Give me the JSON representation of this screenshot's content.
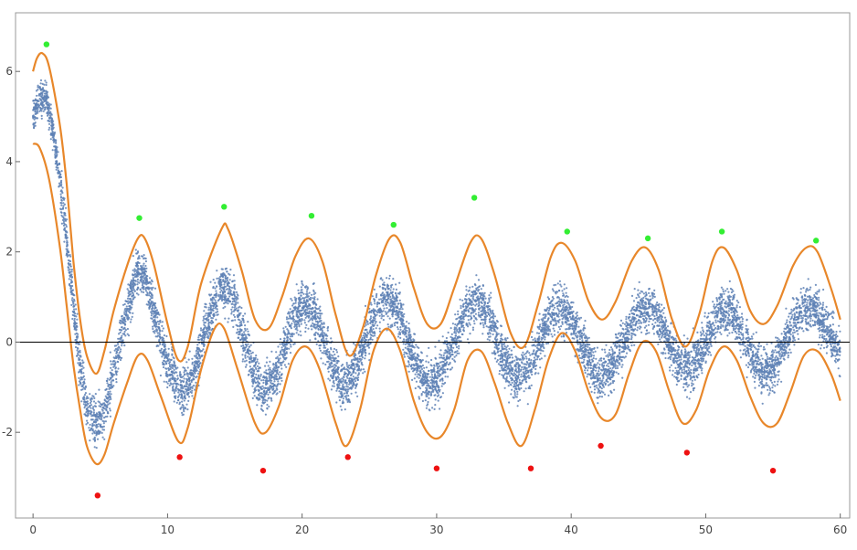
{
  "chart_data": {
    "type": "scatter",
    "title": "",
    "xlabel": "",
    "ylabel": "",
    "xlim": [
      -1.3,
      60.7
    ],
    "ylim": [
      -3.9,
      7.3
    ],
    "x_ticks": [
      0,
      10,
      20,
      30,
      40,
      50,
      60
    ],
    "y_ticks": [
      -2,
      0,
      2,
      4,
      6
    ],
    "x_tick_labels": [
      "0",
      "10",
      "20",
      "30",
      "40",
      "50",
      "60"
    ],
    "y_tick_labels": [
      "-2",
      "0",
      "2",
      "4",
      "6"
    ],
    "zero_line": true,
    "grid": false,
    "colors": {
      "scatter": "#5e81b5",
      "envelope": "#e8872a",
      "max_points": "#33ee33",
      "min_points": "#ee1111",
      "frame": "#999999"
    },
    "series": [
      {
        "role": "scatter-cloud",
        "approx_point_count": 9000,
        "x_range": [
          0,
          60
        ],
        "mean_curve": [
          [
            0,
            5.0
          ],
          [
            0.5,
            5.5
          ],
          [
            1,
            5.4
          ],
          [
            1.5,
            4.6
          ],
          [
            2,
            3.6
          ],
          [
            2.5,
            2.3
          ],
          [
            3,
            0.8
          ],
          [
            3.5,
            -0.6
          ],
          [
            4,
            -1.4
          ],
          [
            4.7,
            -1.8
          ],
          [
            5.3,
            -1.6
          ],
          [
            6,
            -0.6
          ],
          [
            7,
            0.7
          ],
          [
            7.8,
            1.6
          ],
          [
            8.3,
            1.5
          ],
          [
            9,
            0.6
          ],
          [
            10,
            -0.5
          ],
          [
            11,
            -1.1
          ],
          [
            12,
            -0.7
          ],
          [
            13,
            0.5
          ],
          [
            14,
            1.3
          ],
          [
            15,
            0.9
          ],
          [
            16,
            -0.3
          ],
          [
            17,
            -1.1
          ],
          [
            18,
            -0.8
          ],
          [
            19,
            0.2
          ],
          [
            20,
            0.9
          ],
          [
            21,
            0.6
          ],
          [
            22,
            -0.3
          ],
          [
            23,
            -1.0
          ],
          [
            24,
            -0.6
          ],
          [
            25,
            0.3
          ],
          [
            26,
            1.0
          ],
          [
            27,
            0.8
          ],
          [
            28,
            -0.1
          ],
          [
            29,
            -0.9
          ],
          [
            30,
            -0.9
          ],
          [
            31,
            -0.2
          ],
          [
            32,
            0.6
          ],
          [
            33,
            1.0
          ],
          [
            34,
            0.5
          ],
          [
            35,
            -0.4
          ],
          [
            36,
            -0.8
          ],
          [
            37,
            -0.5
          ],
          [
            38,
            0.3
          ],
          [
            39,
            0.8
          ],
          [
            40,
            0.6
          ],
          [
            41,
            -0.2
          ],
          [
            42,
            -0.8
          ],
          [
            43,
            -0.6
          ],
          [
            44,
            0.1
          ],
          [
            45,
            0.7
          ],
          [
            46,
            0.8
          ],
          [
            47,
            0.2
          ],
          [
            48,
            -0.5
          ],
          [
            49,
            -0.6
          ],
          [
            50,
            0.0
          ],
          [
            51,
            0.7
          ],
          [
            52,
            0.7
          ],
          [
            53,
            0.0
          ],
          [
            54,
            -0.6
          ],
          [
            55,
            -0.6
          ],
          [
            56,
            0.1
          ],
          [
            57,
            0.7
          ],
          [
            58,
            0.8
          ],
          [
            59,
            0.3
          ],
          [
            60,
            -0.2
          ]
        ]
      },
      {
        "role": "upper-envelope",
        "points": [
          [
            0,
            6.0
          ],
          [
            0.3,
            6.3
          ],
          [
            0.7,
            6.4
          ],
          [
            1.2,
            6.1
          ],
          [
            2,
            4.8
          ],
          [
            2.5,
            3.5
          ],
          [
            3,
            1.8
          ],
          [
            3.5,
            0.5
          ],
          [
            4,
            -0.3
          ],
          [
            4.7,
            -0.7
          ],
          [
            5.3,
            -0.2
          ],
          [
            6,
            0.7
          ],
          [
            7,
            1.7
          ],
          [
            7.8,
            2.3
          ],
          [
            8.3,
            2.3
          ],
          [
            9,
            1.7
          ],
          [
            10,
            0.4
          ],
          [
            10.8,
            -0.4
          ],
          [
            11.5,
            -0.1
          ],
          [
            12.5,
            1.3
          ],
          [
            14,
            2.5
          ],
          [
            14.5,
            2.5
          ],
          [
            15.5,
            1.6
          ],
          [
            16.5,
            0.5
          ],
          [
            17.5,
            0.3
          ],
          [
            18.5,
            1.0
          ],
          [
            19.5,
            1.9
          ],
          [
            20.5,
            2.3
          ],
          [
            21.5,
            1.8
          ],
          [
            22.5,
            0.6
          ],
          [
            23.5,
            -0.3
          ],
          [
            24.5,
            0.3
          ],
          [
            25.5,
            1.5
          ],
          [
            26.5,
            2.3
          ],
          [
            27.3,
            2.2
          ],
          [
            28.3,
            1.2
          ],
          [
            29.3,
            0.4
          ],
          [
            30.3,
            0.4
          ],
          [
            31.3,
            1.2
          ],
          [
            32.5,
            2.2
          ],
          [
            33.3,
            2.3
          ],
          [
            34.3,
            1.5
          ],
          [
            35.5,
            0.2
          ],
          [
            36.5,
            -0.1
          ],
          [
            37.5,
            0.8
          ],
          [
            38.5,
            1.9
          ],
          [
            39.3,
            2.2
          ],
          [
            40.3,
            1.8
          ],
          [
            41.3,
            0.9
          ],
          [
            42.3,
            0.5
          ],
          [
            43.3,
            0.9
          ],
          [
            44.5,
            1.8
          ],
          [
            45.5,
            2.1
          ],
          [
            46.5,
            1.6
          ],
          [
            47.5,
            0.5
          ],
          [
            48.5,
            -0.1
          ],
          [
            49.5,
            0.6
          ],
          [
            50.5,
            1.8
          ],
          [
            51.3,
            2.1
          ],
          [
            52.3,
            1.6
          ],
          [
            53.3,
            0.7
          ],
          [
            54.3,
            0.4
          ],
          [
            55.3,
            0.8
          ],
          [
            56.5,
            1.7
          ],
          [
            57.5,
            2.1
          ],
          [
            58.3,
            2.0
          ],
          [
            59.3,
            1.2
          ],
          [
            60,
            0.5
          ]
        ]
      },
      {
        "role": "lower-envelope",
        "points": [
          [
            0,
            4.4
          ],
          [
            0.5,
            4.3
          ],
          [
            1.2,
            3.6
          ],
          [
            2,
            2.1
          ],
          [
            2.5,
            0.8
          ],
          [
            3,
            -0.5
          ],
          [
            3.5,
            -1.5
          ],
          [
            4,
            -2.3
          ],
          [
            4.7,
            -2.7
          ],
          [
            5.3,
            -2.5
          ],
          [
            6,
            -1.8
          ],
          [
            7,
            -0.9
          ],
          [
            7.8,
            -0.3
          ],
          [
            8.5,
            -0.4
          ],
          [
            9.5,
            -1.2
          ],
          [
            10.8,
            -2.2
          ],
          [
            11.5,
            -1.9
          ],
          [
            12.5,
            -0.6
          ],
          [
            13.5,
            0.3
          ],
          [
            14.2,
            0.3
          ],
          [
            15.2,
            -0.6
          ],
          [
            16.5,
            -1.8
          ],
          [
            17.3,
            -2.0
          ],
          [
            18.3,
            -1.4
          ],
          [
            19.3,
            -0.4
          ],
          [
            20.3,
            -0.1
          ],
          [
            21.3,
            -0.6
          ],
          [
            22.5,
            -1.8
          ],
          [
            23.3,
            -2.3
          ],
          [
            24.3,
            -1.5
          ],
          [
            25.3,
            -0.2
          ],
          [
            26.3,
            0.3
          ],
          [
            27.3,
            -0.2
          ],
          [
            28.3,
            -1.3
          ],
          [
            29.3,
            -2.0
          ],
          [
            30.3,
            -2.1
          ],
          [
            31.3,
            -1.5
          ],
          [
            32.3,
            -0.4
          ],
          [
            33.3,
            -0.2
          ],
          [
            34.3,
            -0.9
          ],
          [
            35.3,
            -1.8
          ],
          [
            36.3,
            -2.3
          ],
          [
            37.3,
            -1.5
          ],
          [
            38.3,
            -0.4
          ],
          [
            39.3,
            0.2
          ],
          [
            40.3,
            -0.2
          ],
          [
            41.3,
            -1.1
          ],
          [
            42.3,
            -1.7
          ],
          [
            43.3,
            -1.6
          ],
          [
            44.3,
            -0.7
          ],
          [
            45.3,
            0.0
          ],
          [
            46.3,
            -0.2
          ],
          [
            47.3,
            -1.1
          ],
          [
            48.3,
            -1.8
          ],
          [
            49.3,
            -1.5
          ],
          [
            50.3,
            -0.6
          ],
          [
            51.3,
            -0.1
          ],
          [
            52.3,
            -0.4
          ],
          [
            53.3,
            -1.2
          ],
          [
            54.3,
            -1.8
          ],
          [
            55.3,
            -1.8
          ],
          [
            56.3,
            -1.1
          ],
          [
            57.3,
            -0.3
          ],
          [
            58.3,
            -0.2
          ],
          [
            59.3,
            -0.7
          ],
          [
            60,
            -1.3
          ]
        ]
      },
      {
        "role": "local-maxima",
        "points": [
          [
            1.0,
            6.6
          ],
          [
            7.9,
            2.75
          ],
          [
            14.2,
            3.0
          ],
          [
            20.7,
            2.8
          ],
          [
            26.8,
            2.6
          ],
          [
            32.8,
            3.2
          ],
          [
            39.7,
            2.45
          ],
          [
            45.7,
            2.3
          ],
          [
            51.2,
            2.45
          ],
          [
            58.2,
            2.25
          ]
        ]
      },
      {
        "role": "local-minima",
        "points": [
          [
            4.8,
            -3.4
          ],
          [
            10.9,
            -2.55
          ],
          [
            17.1,
            -2.85
          ],
          [
            23.4,
            -2.55
          ],
          [
            30.0,
            -2.8
          ],
          [
            37.0,
            -2.8
          ],
          [
            42.2,
            -2.3
          ],
          [
            48.6,
            -2.45
          ],
          [
            55.0,
            -2.85
          ]
        ]
      }
    ]
  }
}
